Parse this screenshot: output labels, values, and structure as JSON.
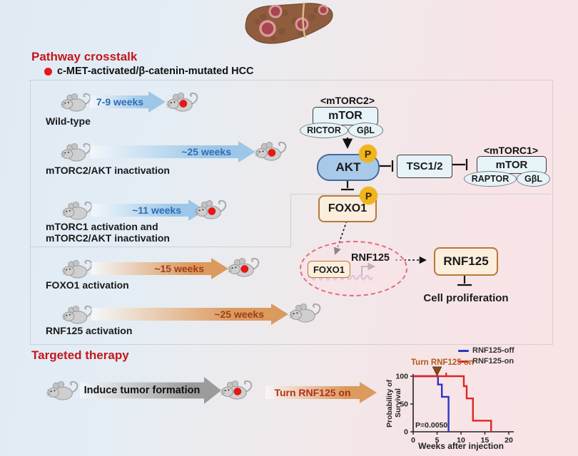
{
  "titles": {
    "pathway": "Pathway crosstalk",
    "therapy": "Targeted therapy"
  },
  "subtitle": "c-MET-activated/β-catenin-mutated HCC",
  "experiments": [
    {
      "label": "Wild-type",
      "weeks": "7-9 weeks",
      "arrow_color": "blue",
      "outcome": "tumor"
    },
    {
      "label": "mTORC2/AKT inactivation",
      "weeks": "~25 weeks",
      "arrow_color": "blue",
      "outcome": "tumor"
    },
    {
      "label": "mTORC1 activation and\nmTORC2/AKT inactivation",
      "weeks": "~11 weeks",
      "arrow_color": "blue",
      "outcome": "tumor"
    },
    {
      "label": "FOXO1 activation",
      "weeks": "~15 weeks",
      "arrow_color": "orange",
      "outcome": "tumor"
    },
    {
      "label": "RNF125 activation",
      "weeks": "~25 weeks",
      "arrow_color": "orange",
      "outcome": "healthy"
    }
  ],
  "pathway": {
    "mtorc2_title": "<mTORC2>",
    "mtorc2_core": "mTOR",
    "mtorc2_sub1": "RICTOR",
    "mtorc2_sub2": "GβL",
    "akt": "AKT",
    "phospho": "P",
    "tsc": "TSC1/2",
    "mtorc1_title": "<mTORC1>",
    "mtorc1_core": "mTOR",
    "mtorc1_sub1": "RAPTOR",
    "mtorc1_sub2": "GβL",
    "foxo1": "FOXO1",
    "foxo1_nuclear": "FOXO1",
    "rnf125_gene": "RNF125",
    "rnf125_protein": "RNF125",
    "output": "Cell proliferation"
  },
  "therapy": {
    "step1": "Induce tumor formation",
    "step2": "Turn RNF125 on"
  },
  "colors": {
    "accent_red": "#c4161c",
    "tumor_dot": "#e81717",
    "blue_arrow": "#9cc7e8",
    "orange_arrow": "#db9a5e",
    "akt_fill": "#a9c9e9",
    "phospho_fill": "#f1b41c",
    "protein_box_fill": "#fceedd",
    "protein_box_border": "#b5793a"
  },
  "chart_data": {
    "type": "line",
    "subtype": "kaplan-meier-step-survival",
    "title": "",
    "xlabel": "Weeks after injection",
    "ylabel": "Probability of Survival",
    "xlim": [
      0,
      20
    ],
    "ylim": [
      0,
      100
    ],
    "xticks": [
      0,
      5,
      10,
      15,
      20
    ],
    "yticks": [
      0,
      50,
      100
    ],
    "grid": false,
    "legend_position": "top-right",
    "p_value": "P=0.0050",
    "annotation": {
      "text": "Turn RNF125 on",
      "x": 5.0,
      "color": "#b05a1a"
    },
    "series": [
      {
        "name": "RNF125-off",
        "color": "#2a35c8",
        "points": [
          [
            0,
            100
          ],
          [
            5.2,
            100
          ],
          [
            5.2,
            85
          ],
          [
            6,
            85
          ],
          [
            6,
            63
          ],
          [
            7.4,
            63
          ],
          [
            7.4,
            0
          ]
        ]
      },
      {
        "name": "RNF125-on",
        "color": "#e02424",
        "points": [
          [
            0,
            100
          ],
          [
            10.6,
            100
          ],
          [
            10.6,
            82
          ],
          [
            11.2,
            82
          ],
          [
            11.2,
            60
          ],
          [
            12.5,
            60
          ],
          [
            12.5,
            20
          ],
          [
            16.3,
            20
          ],
          [
            16.3,
            0
          ]
        ],
        "censor_marks": [
          [
            6.9,
            100
          ]
        ]
      }
    ]
  }
}
